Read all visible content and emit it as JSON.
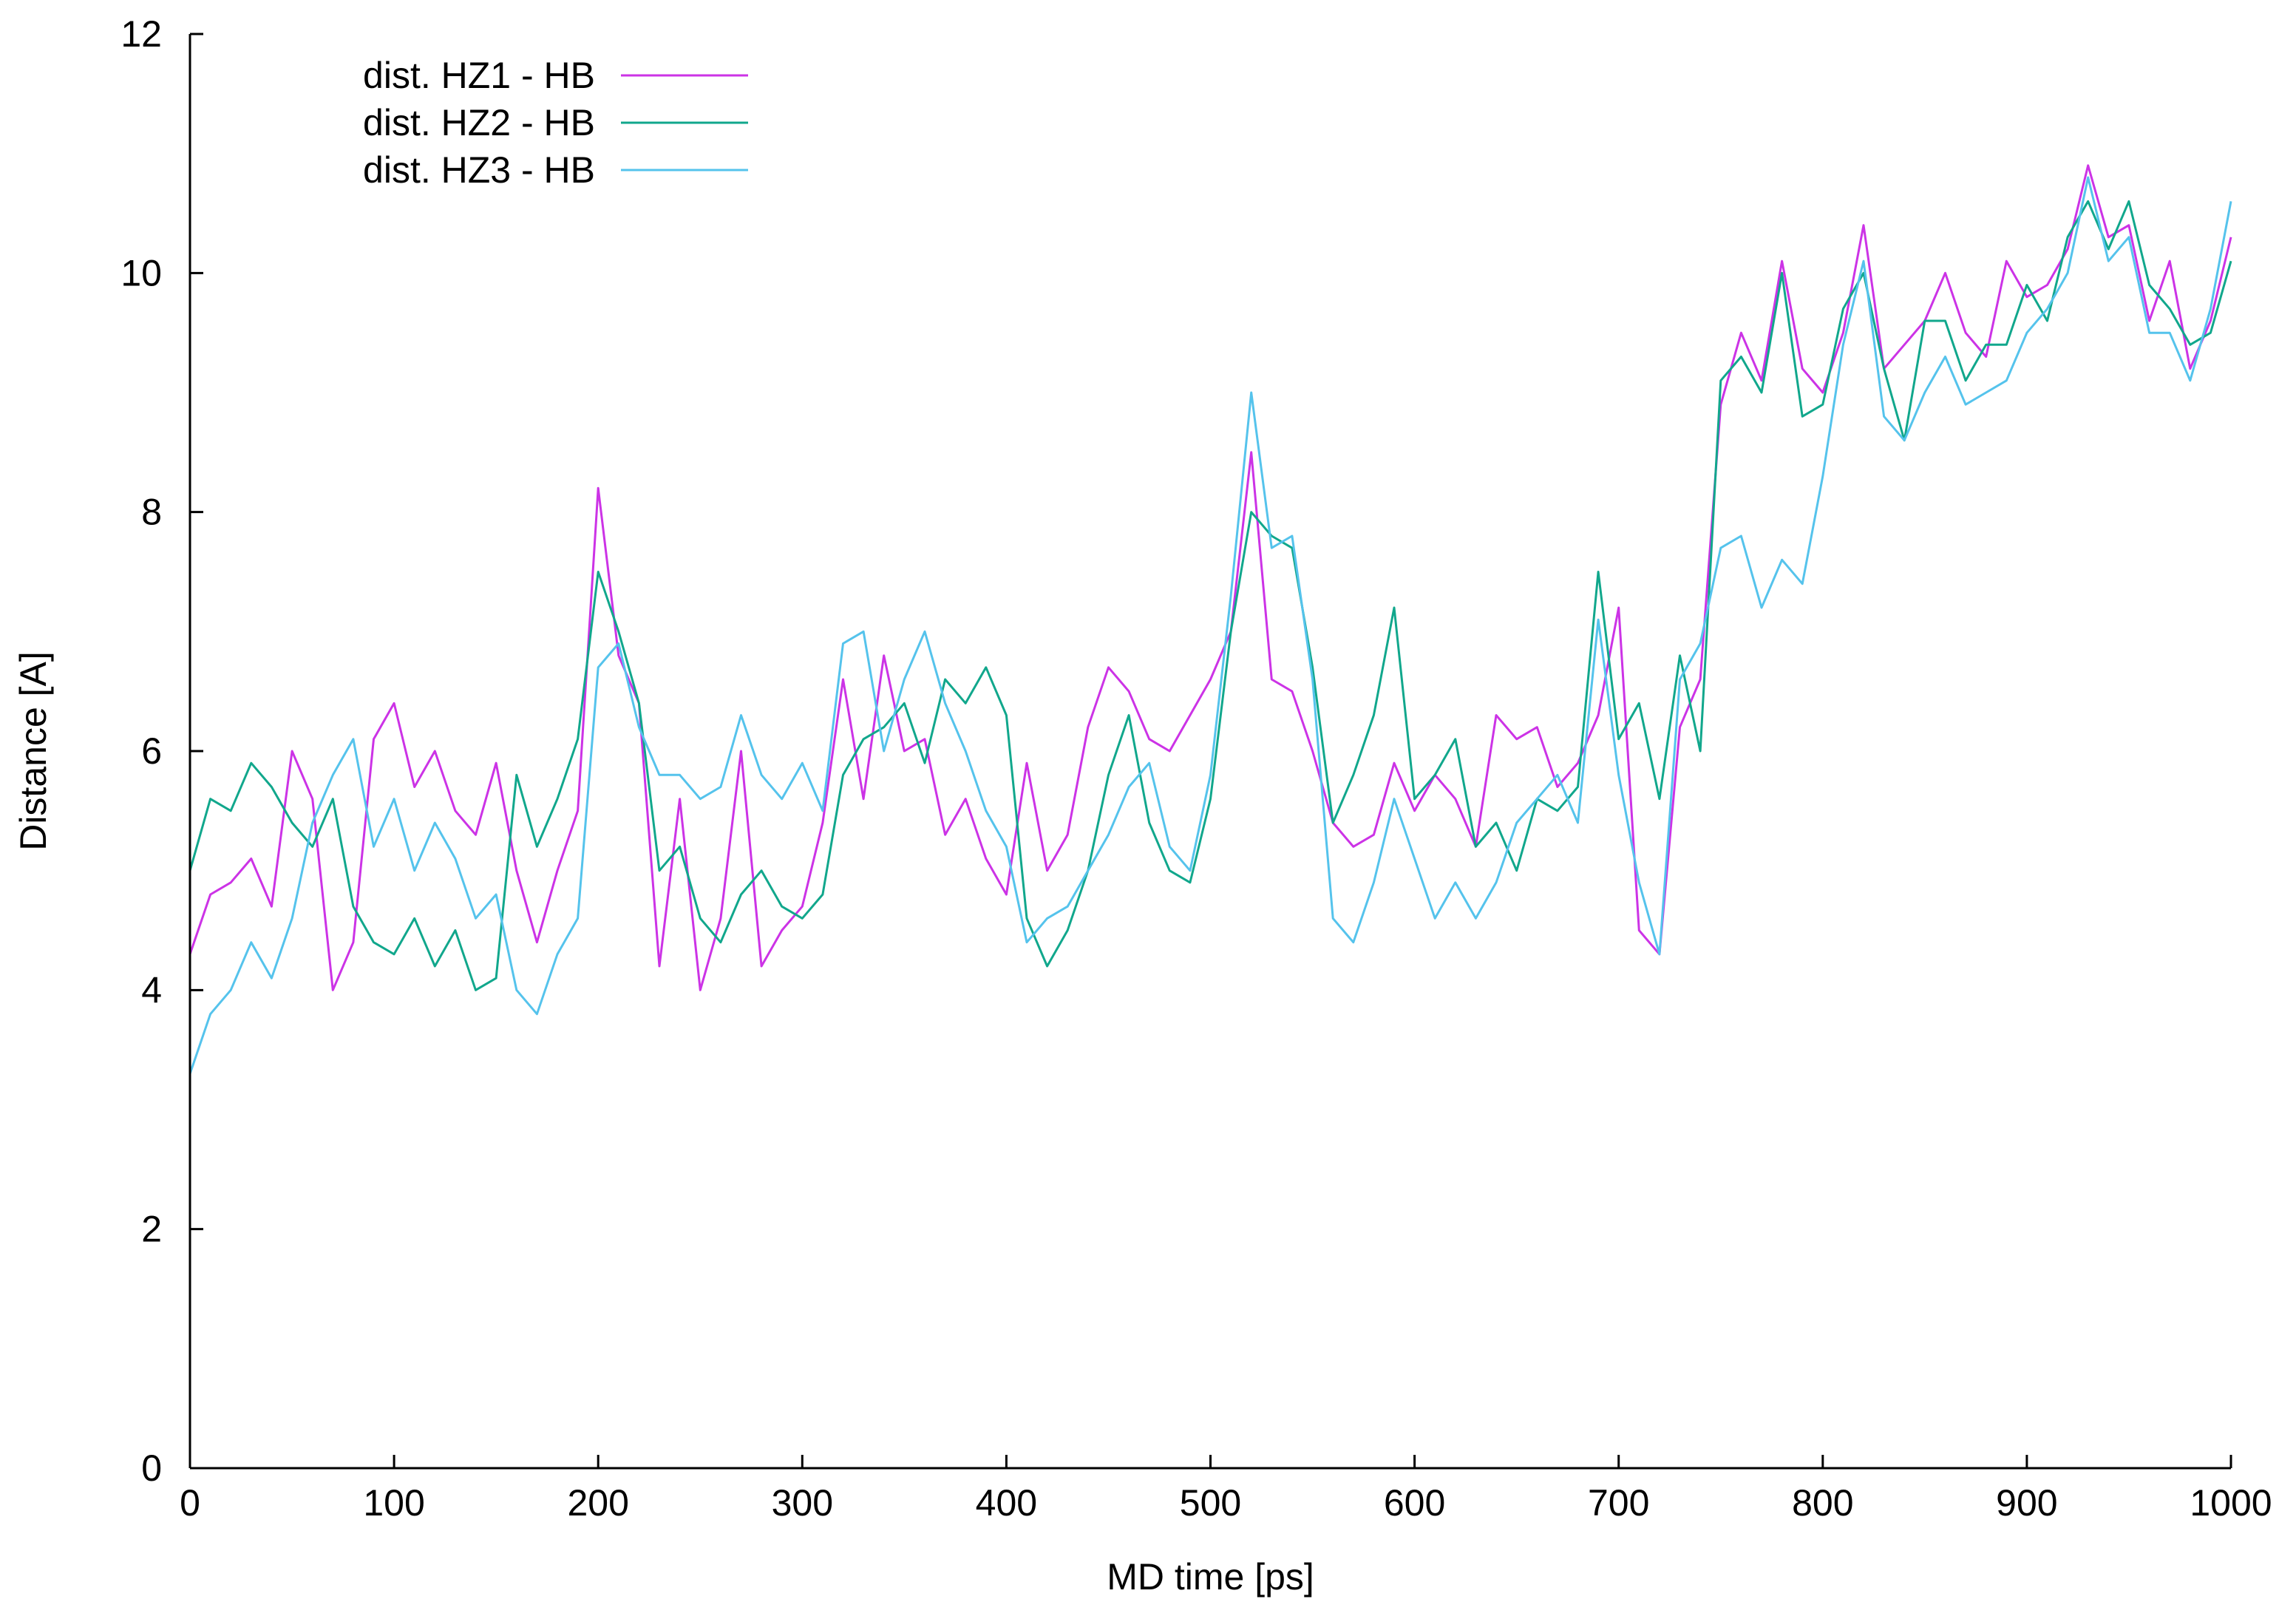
{
  "chart_data": {
    "type": "line",
    "title": "",
    "xlabel": "MD time [ps]",
    "ylabel": "Distance [A]",
    "xlim": [
      0,
      1000
    ],
    "ylim": [
      0,
      12
    ],
    "x_ticks": [
      0,
      100,
      200,
      300,
      400,
      500,
      600,
      700,
      800,
      900,
      1000
    ],
    "y_ticks": [
      0,
      2,
      4,
      6,
      8,
      10,
      12
    ],
    "x_tick_labels": [
      "0",
      "100",
      "200",
      "300",
      "400",
      "500",
      "600",
      "700",
      "800",
      "900",
      "1000"
    ],
    "y_tick_labels": [
      "0",
      "2",
      "4",
      "6",
      "8",
      "10",
      "12"
    ],
    "grid": false,
    "legend_position": "top-left",
    "x": [
      0,
      10,
      20,
      30,
      40,
      50,
      60,
      70,
      80,
      90,
      100,
      110,
      120,
      130,
      140,
      150,
      160,
      170,
      180,
      190,
      200,
      210,
      220,
      230,
      240,
      250,
      260,
      270,
      280,
      290,
      300,
      310,
      320,
      330,
      340,
      350,
      360,
      370,
      380,
      390,
      400,
      410,
      420,
      430,
      440,
      450,
      460,
      470,
      480,
      490,
      500,
      510,
      520,
      530,
      540,
      550,
      560,
      570,
      580,
      590,
      600,
      610,
      620,
      630,
      640,
      650,
      660,
      670,
      680,
      690,
      700,
      710,
      720,
      730,
      740,
      750,
      760,
      770,
      780,
      790,
      800,
      810,
      820,
      830,
      840,
      850,
      860,
      870,
      880,
      890,
      900,
      910,
      920,
      930,
      940,
      950,
      960,
      970,
      980,
      990,
      1000
    ],
    "series": [
      {
        "name": "dist. HZ1 - HB",
        "color": "#cc33e6",
        "values": [
          4.3,
          4.8,
          4.9,
          5.1,
          4.7,
          6.0,
          5.6,
          4.0,
          4.4,
          6.1,
          6.4,
          5.7,
          6.0,
          5.5,
          5.3,
          5.9,
          5.0,
          4.4,
          5.0,
          5.5,
          8.2,
          6.8,
          6.4,
          4.2,
          5.6,
          4.0,
          4.6,
          6.0,
          4.2,
          4.5,
          4.7,
          5.4,
          6.6,
          5.6,
          6.8,
          6.0,
          6.1,
          5.3,
          5.6,
          5.1,
          4.8,
          5.9,
          5.0,
          5.3,
          6.2,
          6.7,
          6.5,
          6.1,
          6.0,
          6.3,
          6.6,
          7.0,
          8.5,
          6.6,
          6.5,
          6.0,
          5.4,
          5.2,
          5.3,
          5.9,
          5.5,
          5.8,
          5.6,
          5.2,
          6.3,
          6.1,
          6.2,
          5.7,
          5.9,
          6.3,
          7.2,
          4.5,
          4.3,
          6.2,
          6.6,
          8.9,
          9.5,
          9.1,
          10.1,
          9.2,
          9.0,
          9.5,
          10.4,
          9.2,
          9.4,
          9.6,
          10.0,
          9.5,
          9.3,
          10.1,
          9.8,
          9.9,
          10.2,
          10.9,
          10.3,
          10.4,
          9.6,
          10.1,
          9.2,
          9.6,
          10.3
        ]
      },
      {
        "name": "dist. HZ2 - HB",
        "color": "#11a78c",
        "values": [
          5.0,
          5.6,
          5.5,
          5.9,
          5.7,
          5.4,
          5.2,
          5.6,
          4.7,
          4.4,
          4.3,
          4.6,
          4.2,
          4.5,
          4.0,
          4.1,
          5.8,
          5.2,
          5.6,
          6.1,
          7.5,
          7.0,
          6.4,
          5.0,
          5.2,
          4.6,
          4.4,
          4.8,
          5.0,
          4.7,
          4.6,
          4.8,
          5.8,
          6.1,
          6.2,
          6.4,
          5.9,
          6.6,
          6.4,
          6.7,
          6.3,
          4.6,
          4.2,
          4.5,
          5.0,
          5.8,
          6.3,
          5.4,
          5.0,
          4.9,
          5.6,
          7.0,
          8.0,
          7.8,
          7.7,
          6.7,
          5.4,
          5.8,
          6.3,
          7.2,
          5.6,
          5.8,
          6.1,
          5.2,
          5.4,
          5.0,
          5.6,
          5.5,
          5.7,
          7.5,
          6.1,
          6.4,
          5.6,
          6.8,
          6.0,
          9.1,
          9.3,
          9.0,
          10.0,
          8.8,
          8.9,
          9.7,
          10.0,
          9.2,
          8.6,
          9.6,
          9.6,
          9.1,
          9.4,
          9.4,
          9.9,
          9.6,
          10.3,
          10.6,
          10.2,
          10.6,
          9.9,
          9.7,
          9.4,
          9.5,
          10.1
        ]
      },
      {
        "name": "dist. HZ3 - HB",
        "color": "#55c3ec",
        "values": [
          3.3,
          3.8,
          4.0,
          4.4,
          4.1,
          4.6,
          5.4,
          5.8,
          6.1,
          5.2,
          5.6,
          5.0,
          5.4,
          5.1,
          4.6,
          4.8,
          4.0,
          3.8,
          4.3,
          4.6,
          6.7,
          6.9,
          6.2,
          5.8,
          5.8,
          5.6,
          5.7,
          6.3,
          5.8,
          5.6,
          5.9,
          5.5,
          6.9,
          7.0,
          6.0,
          6.6,
          7.0,
          6.4,
          6.0,
          5.5,
          5.2,
          4.4,
          4.6,
          4.7,
          5.0,
          5.3,
          5.7,
          5.9,
          5.2,
          5.0,
          5.8,
          7.3,
          9.0,
          7.7,
          7.8,
          6.6,
          4.6,
          4.4,
          4.9,
          5.6,
          5.1,
          4.6,
          4.9,
          4.6,
          4.9,
          5.4,
          5.6,
          5.8,
          5.4,
          7.1,
          5.8,
          4.9,
          4.3,
          6.6,
          6.9,
          7.7,
          7.8,
          7.2,
          7.6,
          7.4,
          8.3,
          9.4,
          10.1,
          8.8,
          8.6,
          9.0,
          9.3,
          8.9,
          9.0,
          9.1,
          9.5,
          9.7,
          10.0,
          10.8,
          10.1,
          10.3,
          9.5,
          9.5,
          9.1,
          9.7,
          10.6
        ]
      }
    ]
  }
}
